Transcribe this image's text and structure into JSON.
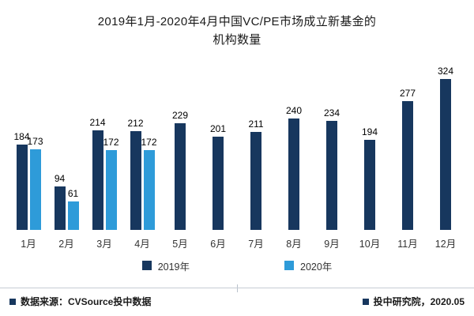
{
  "title": {
    "line1": "2019年1月-2020年4月中国VC/PE市场成立新基金的",
    "line2": "机构数量"
  },
  "chart_data": {
    "type": "bar",
    "categories": [
      "1月",
      "2月",
      "3月",
      "4月",
      "5月",
      "6月",
      "7月",
      "8月",
      "9月",
      "10月",
      "11月",
      "12月"
    ],
    "series": [
      {
        "name": "2019年",
        "color": "#17375E",
        "values": [
          184,
          94,
          214,
          212,
          229,
          201,
          211,
          240,
          234,
          194,
          277,
          324
        ]
      },
      {
        "name": "2020年",
        "color": "#2E9BD9",
        "values": [
          173,
          61,
          172,
          172,
          null,
          null,
          null,
          null,
          null,
          null,
          null,
          null
        ]
      }
    ],
    "ylim": [
      0,
      340
    ],
    "grid": false,
    "legend_position": "bottom",
    "value_labels": true
  },
  "footer": {
    "source": "数据来源：CVSource投中数据",
    "right": "投中研究院，2020.05"
  }
}
